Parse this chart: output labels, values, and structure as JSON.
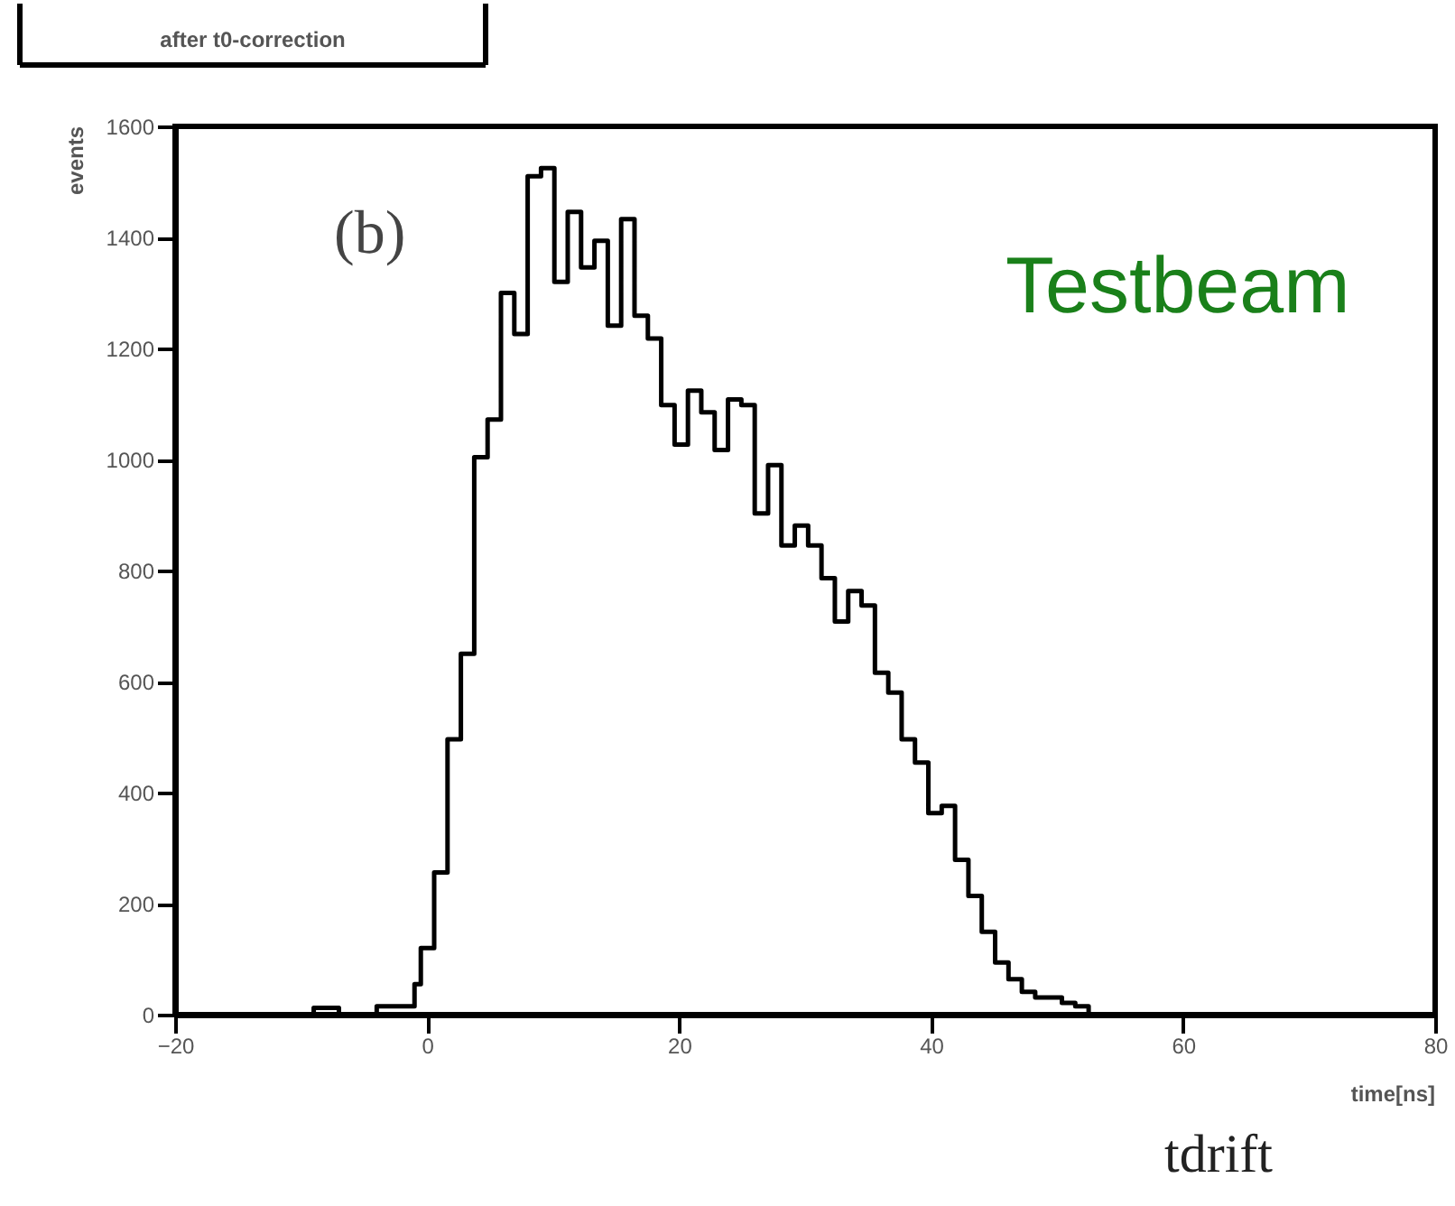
{
  "chart_data": {
    "type": "histogram",
    "title": "after t0-correction",
    "xlabel": "time[ns]",
    "ylabel": "events",
    "annotations": [
      "(b)",
      "Testbeam",
      "tdrift"
    ],
    "bins": [
      -9,
      -7,
      -4,
      -1,
      -0.5,
      0.56,
      1.62,
      2.68,
      3.74,
      4.8,
      5.86,
      6.92,
      7.98,
      9.04,
      10.1,
      11.16,
      12.22,
      13.28,
      14.34,
      15.4,
      16.46,
      17.52,
      18.58,
      19.64,
      20.7,
      21.76,
      22.82,
      23.88,
      24.94,
      26,
      27.06,
      28.12,
      29.18,
      30.24,
      31.3,
      32.36,
      33.42,
      34.48,
      35.54,
      36.6,
      37.66,
      38.72,
      39.78,
      40.84,
      41.9,
      42.96,
      44.02,
      45.08,
      46.14,
      47.2,
      48.26,
      49.32,
      50.38,
      51.44,
      52.5
    ],
    "values": [
      12,
      0,
      15,
      55,
      120,
      256,
      496,
      650,
      1004,
      1072,
      1300,
      1226,
      1510,
      1525,
      1320,
      1446,
      1346,
      1394,
      1241,
      1433,
      1259,
      1218,
      1098,
      1027,
      1124,
      1085,
      1017,
      1108,
      1098,
      903,
      990,
      845,
      881,
      845,
      786,
      708,
      763,
      737,
      616,
      580,
      496,
      454,
      363,
      376,
      279,
      214,
      149,
      94,
      64,
      41,
      31,
      31,
      21,
      15
    ],
    "color": "#000000",
    "xlim": [
      -20,
      80
    ],
    "xticks": [
      -20,
      0,
      20,
      40,
      60,
      80
    ],
    "ylim": [
      0,
      1600
    ],
    "yticks": [
      0,
      200,
      400,
      600,
      800,
      1000,
      1200,
      1400,
      1600
    ],
    "grid": false
  }
}
